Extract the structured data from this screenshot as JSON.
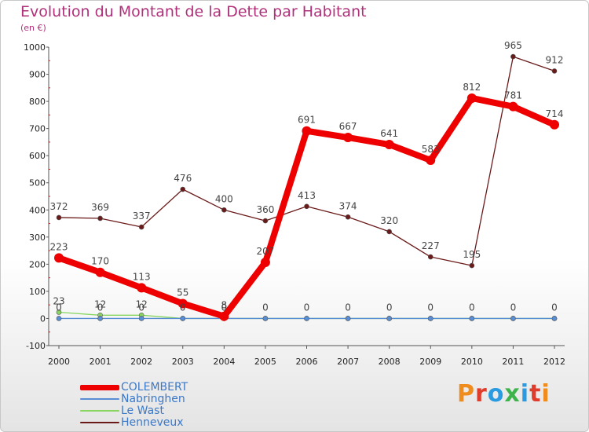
{
  "chart_data": {
    "type": "line",
    "title": "Evolution du Montant de la Dette par Habitant",
    "subtitle": "(en €)",
    "x": [
      "2000",
      "2001",
      "2002",
      "2003",
      "2004",
      "2005",
      "2006",
      "2007",
      "2008",
      "2009",
      "2010",
      "2011",
      "2012"
    ],
    "ylim": [
      -100,
      1000
    ],
    "yticks": [
      -100,
      0,
      100,
      200,
      300,
      400,
      500,
      600,
      700,
      800,
      900,
      1000
    ],
    "grid": false,
    "legend_position": "bottom-left",
    "series": [
      {
        "name": "Henneveux",
        "color": "#6b1a1a",
        "width": 1.3,
        "marker": 3,
        "values": [
          372,
          369,
          337,
          476,
          400,
          360,
          413,
          374,
          320,
          227,
          195,
          965,
          912
        ],
        "labels": [
          "372",
          "369",
          "337",
          "476",
          "400",
          "360",
          "413",
          "374",
          "320",
          "227",
          "195",
          "965",
          "912"
        ]
      },
      {
        "name": "Le Wast",
        "color": "#88d660",
        "width": 1.3,
        "marker": 3,
        "values": [
          23,
          12,
          12,
          0,
          0,
          0,
          0,
          0,
          0,
          0,
          0,
          0,
          0
        ],
        "labels": [
          "23",
          "12",
          "12",
          "",
          "",
          "",
          "",
          "",
          "",
          "",
          "",
          "",
          ""
        ]
      },
      {
        "name": "Nabringhen",
        "color": "#5a8ed4",
        "width": 1.3,
        "marker": 3,
        "values": [
          0,
          0,
          0,
          0,
          0,
          0,
          0,
          0,
          0,
          0,
          0,
          0,
          0
        ],
        "labels": [
          "0",
          "0",
          "0",
          "",
          "",
          "",
          "",
          "",
          "",
          "",
          "",
          "",
          ""
        ]
      },
      {
        "name": "COLEMBERT",
        "color": "#ee0000",
        "width": 8,
        "marker": 6,
        "values": [
          223,
          170,
          113,
          55,
          8,
          207,
          691,
          667,
          641,
          583,
          812,
          781,
          714
        ],
        "labels": [
          "223",
          "170",
          "113",
          "55",
          "8",
          "207",
          "691",
          "667",
          "641",
          "583",
          "812",
          "781",
          "714"
        ]
      }
    ],
    "extra_labels": [
      {
        "x_index": 3,
        "value": 0,
        "text": "0"
      },
      {
        "x_index": 4,
        "value": 0,
        "text": "0"
      },
      {
        "x_index": 5,
        "value": 0,
        "text": "0"
      },
      {
        "x_index": 6,
        "value": 0,
        "text": "0"
      },
      {
        "x_index": 7,
        "value": 0,
        "text": "0"
      },
      {
        "x_index": 8,
        "value": 0,
        "text": "0"
      },
      {
        "x_index": 9,
        "value": 0,
        "text": "0"
      },
      {
        "x_index": 10,
        "value": 0,
        "text": "0"
      },
      {
        "x_index": 11,
        "value": 0,
        "text": "0"
      },
      {
        "x_index": 12,
        "value": 0,
        "text": "0"
      }
    ]
  },
  "legend": [
    {
      "label": "COLEMBERT",
      "color": "#ee0000"
    },
    {
      "label": "Nabringhen",
      "color": "#5a8ed4"
    },
    {
      "label": "Le Wast",
      "color": "#88d660"
    },
    {
      "label": "Henneveux",
      "color": "#6b1a1a"
    }
  ],
  "logo": {
    "text": "Proxiti",
    "colors": [
      "#f08c1e",
      "#e03c2c",
      "#2a9be0",
      "#3cb44b",
      "#2a9be0",
      "#e03c2c",
      "#f08c1e"
    ]
  }
}
